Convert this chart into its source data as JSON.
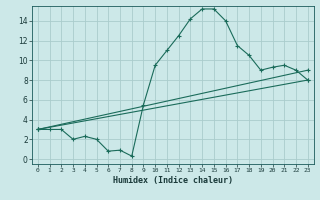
{
  "background_color": "#cce8e8",
  "grid_color": "#aacccc",
  "line_color": "#1a6b5a",
  "marker": "+",
  "marker_size": 3,
  "xlabel": "Humidex (Indice chaleur)",
  "xlim": [
    -0.5,
    23.5
  ],
  "ylim": [
    -0.5,
    15.5
  ],
  "yticks": [
    0,
    2,
    4,
    6,
    8,
    10,
    12,
    14
  ],
  "xticks": [
    0,
    1,
    2,
    3,
    4,
    5,
    6,
    7,
    8,
    9,
    10,
    11,
    12,
    13,
    14,
    15,
    16,
    17,
    18,
    19,
    20,
    21,
    22,
    23
  ],
  "line1_x": [
    0,
    1,
    2,
    3,
    4,
    5,
    6,
    7,
    8,
    9,
    10,
    11,
    12,
    13,
    14,
    15,
    16,
    17,
    18,
    19,
    20,
    21,
    22,
    23
  ],
  "line1_y": [
    3.0,
    3.0,
    3.0,
    2.0,
    2.3,
    2.0,
    0.8,
    0.9,
    0.3,
    5.5,
    9.5,
    11.0,
    12.5,
    14.2,
    15.2,
    15.2,
    14.0,
    11.5,
    10.5,
    9.0,
    9.3,
    9.5,
    9.0,
    8.0
  ],
  "line2_x": [
    0,
    23
  ],
  "line2_y": [
    3.0,
    9.0
  ],
  "line3_x": [
    0,
    23
  ],
  "line3_y": [
    3.0,
    8.0
  ],
  "xlabel_fontsize": 6.0,
  "tick_fontsize_x": 4.5,
  "tick_fontsize_y": 5.5,
  "linewidth": 0.8
}
